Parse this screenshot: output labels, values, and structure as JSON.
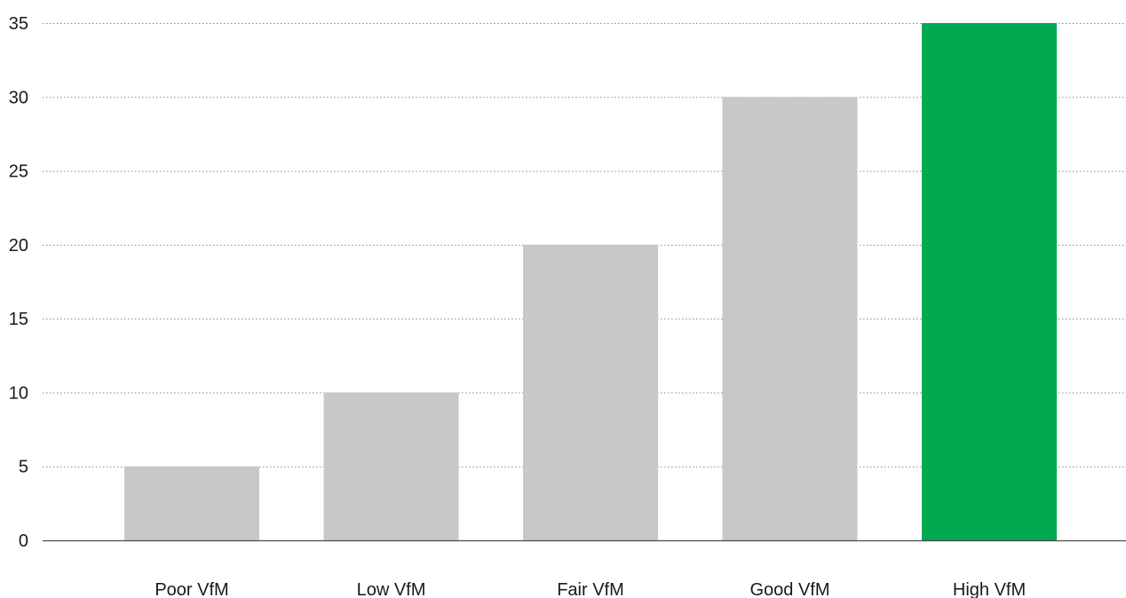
{
  "chart_data": {
    "type": "bar",
    "title": "",
    "xlabel": "",
    "ylabel": "",
    "categories": [
      "Poor VfM",
      "Low VfM",
      "Fair VfM",
      "Good VfM",
      "High VfM"
    ],
    "values": [
      5,
      10,
      20,
      30,
      35
    ],
    "ylim": [
      0,
      35
    ],
    "yticks": [
      0,
      5,
      10,
      15,
      20,
      25,
      30,
      35
    ],
    "grid": true,
    "legend": "none",
    "colors": {
      "default_bar": "#c7c8ca",
      "highlight_bar": "#00a94f",
      "highlight_category": "High VfM"
    }
  }
}
